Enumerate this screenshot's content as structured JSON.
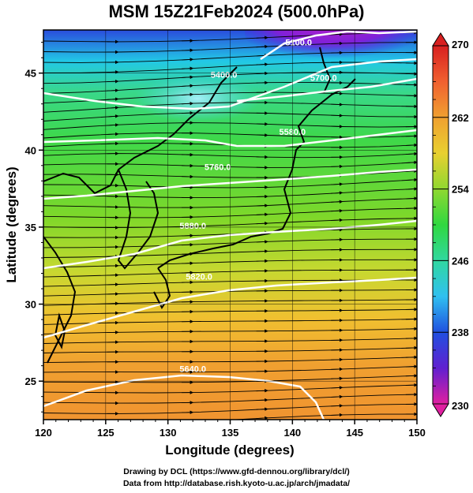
{
  "title": "MSM 15Z21Feb2024 (500.0hPa)",
  "xlabel": "Longitude (degrees)",
  "ylabel": "Latitude  (degrees)",
  "x_ticks": [
    "120",
    "125",
    "130",
    "135",
    "140",
    "145",
    "150"
  ],
  "y_ticks": [
    "25",
    "30",
    "35",
    "40",
    "45"
  ],
  "colorbar": {
    "ticks": [
      "270",
      "262",
      "254",
      "246",
      "238",
      "230"
    ],
    "min": 230,
    "max": 270
  },
  "contour_labels": [
    "5100.0",
    "5400.0",
    "5700.0",
    "5580.0",
    "5760.0",
    "5880.0",
    "5820.0",
    "5640.0"
  ],
  "footer": {
    "line1": "Drawing by DCL (https://www.gfd-dennou.org/library/dcl/)",
    "line2": "Data from http://database.rish.kyoto-u.ac.jp/arch/jmadata/"
  },
  "chart_data": {
    "type": "heatmap",
    "field": "temperature (K) at 500 hPa, shaded; streamlines; geopotential height contours",
    "xlim": [
      120,
      150
    ],
    "ylim": [
      22.5,
      47.8
    ],
    "color_range": [
      230,
      270
    ],
    "contours": [
      {
        "label": "5100.0",
        "lon": 140.5,
        "lat": 46.8
      },
      {
        "label": "5400.0",
        "lon": 134.5,
        "lat": 44.7
      },
      {
        "label": "5700.0",
        "lon": 142.5,
        "lat": 44.5
      },
      {
        "label": "5580.0",
        "lon": 140.0,
        "lat": 41.0
      },
      {
        "label": "5760.0",
        "lon": 134.0,
        "lat": 38.7
      },
      {
        "label": "5880.0",
        "lon": 132.0,
        "lat": 34.9
      },
      {
        "label": "5820.0",
        "lon": 132.5,
        "lat": 31.6
      },
      {
        "label": "5640.0",
        "lon": 132.0,
        "lat": 25.6
      }
    ]
  }
}
